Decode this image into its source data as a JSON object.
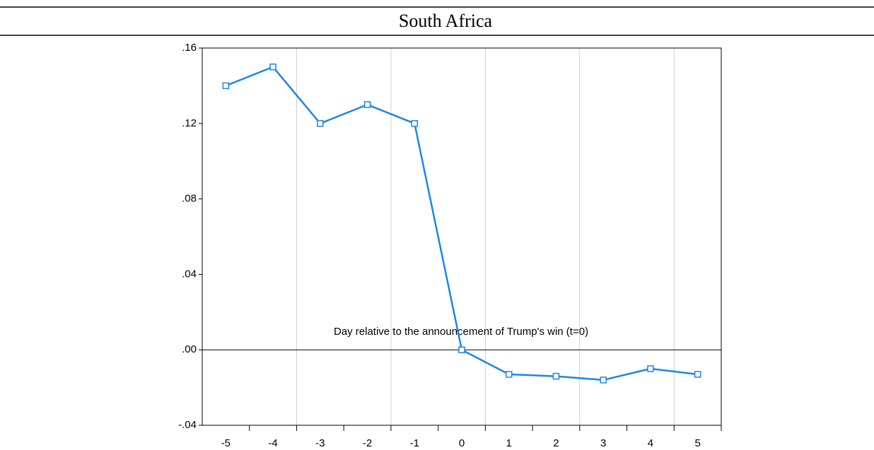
{
  "chart_data": {
    "type": "line",
    "title": "South Africa",
    "annotation": "Day relative to the announcement of Trump's win (t=0)",
    "categories": [
      "-5",
      "-4",
      "-3",
      "-2",
      "-1",
      "0",
      "1",
      "2",
      "3",
      "4",
      "5"
    ],
    "series": [
      {
        "name": "South Africa",
        "color": "#1a86e8",
        "values": [
          0.14,
          0.15,
          0.12,
          0.13,
          0.12,
          0.0,
          -0.013,
          -0.014,
          -0.016,
          -0.01,
          -0.013
        ]
      }
    ],
    "ylim": [
      -0.04,
      0.16
    ],
    "yticks": [
      {
        "value": -0.04,
        "label": "-.04"
      },
      {
        "value": 0,
        "label": ".00"
      },
      {
        "value": 0.04,
        "label": ".04"
      },
      {
        "value": 0.08,
        "label": ".08"
      },
      {
        "value": 0.12,
        "label": ".12"
      },
      {
        "value": 0.16,
        "label": ".16"
      }
    ],
    "grid": true
  }
}
